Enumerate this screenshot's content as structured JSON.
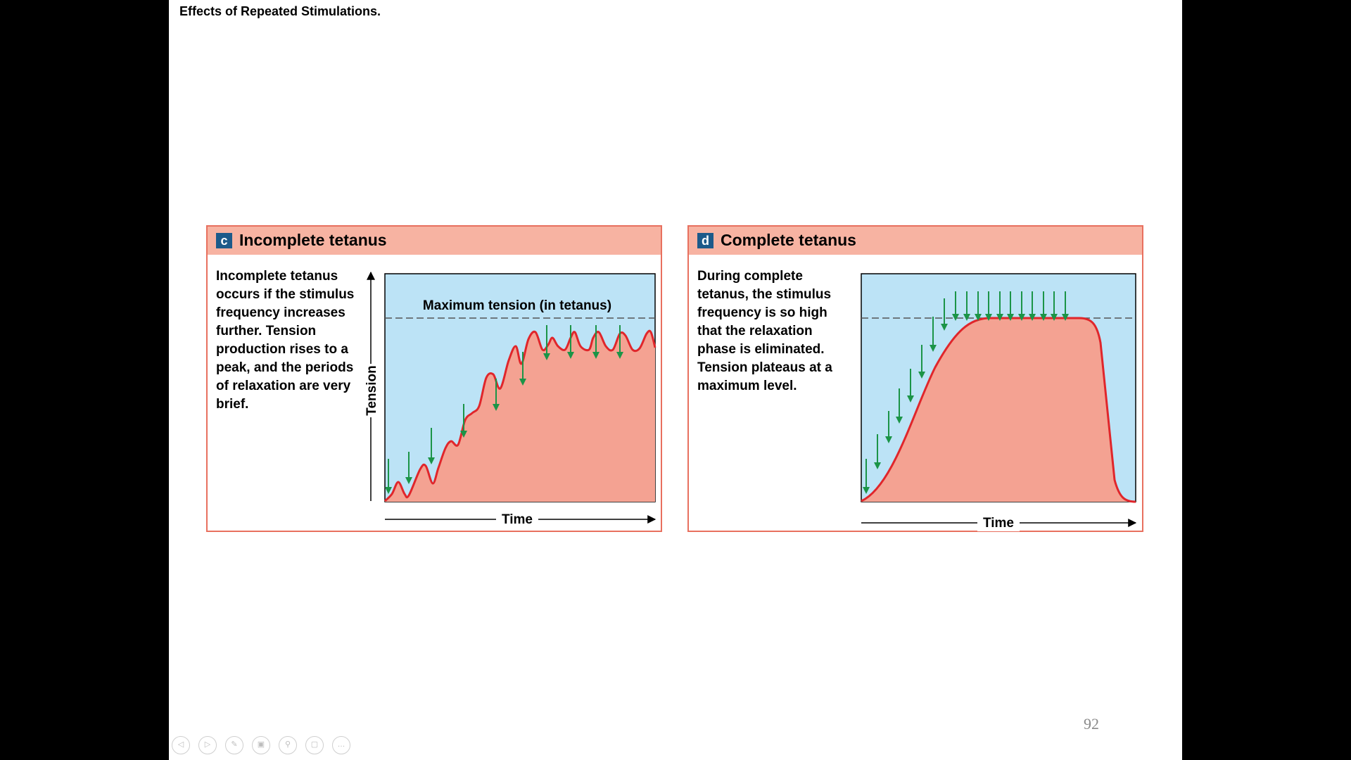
{
  "slide": {
    "title": "Effects of Repeated Stimulations.",
    "page_number": "92"
  },
  "panels": [
    {
      "badge": "c",
      "title": "Incomplete tetanus",
      "text": "Incomplete tetanus occurs if the stimulus frequency increases further. Tension production rises to a peak, and the periods of relaxation are very brief.",
      "y_axis_label": "Tension",
      "x_axis_label": "Time",
      "max_line_label": "Maximum tension (in tetanus)"
    },
    {
      "badge": "d",
      "title": "Complete tetanus",
      "text": "During complete tetanus, the stimulus frequency is so high that the relaxation phase is eliminated. Tension plateaus at a maximum level.",
      "x_axis_label": "Time"
    }
  ],
  "colors": {
    "plot_bg": "#bce3f6",
    "fill": "#f4a292",
    "curve": "#e0262b",
    "arrow": "#1b9447",
    "header": "#f7b3a2",
    "border": "#e8705f",
    "badge": "#1c5a8a"
  },
  "nav_icons": [
    "prev-icon",
    "next-icon",
    "pen-icon",
    "slides-icon",
    "zoom-icon",
    "camera-icon",
    "more-icon"
  ]
}
